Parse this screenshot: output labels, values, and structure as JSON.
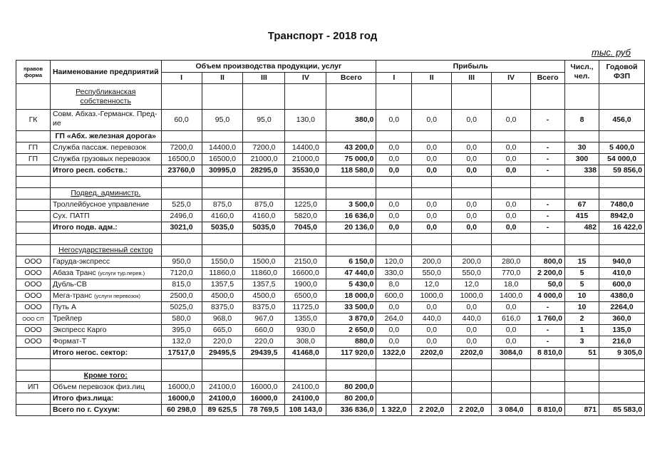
{
  "title": "Транспорт - 2018 год",
  "unit": "тыс. руб",
  "header": {
    "forma": "правов форма",
    "name": "Наименование предприятий",
    "volume": "Объем производства продукции, услуг",
    "profit": "Прибыль",
    "quarters": [
      "I",
      "II",
      "III",
      "IV",
      "Всего"
    ],
    "num": "Числ., чел.",
    "fzp": "Годовой ФЗП"
  },
  "rows": [
    {
      "type": "section",
      "forma": "",
      "name": "Республиканская собственность",
      "underline": true
    },
    {
      "type": "data",
      "forma": "ГК",
      "name": "Совм. Абхаз.-Германск. Пред-ие",
      "vol": [
        "60,0",
        "95,0",
        "95,0",
        "130,0",
        "380,0"
      ],
      "profit": [
        "0,0",
        "0,0",
        "0,0",
        "0,0",
        "-"
      ],
      "num": "8",
      "fzp": "456,0"
    },
    {
      "type": "section",
      "forma": "",
      "name": "ГП «Абх. железная дорога»",
      "bold": true
    },
    {
      "type": "data",
      "forma": "ГП",
      "name": "Служба пассаж. перевозок",
      "vol": [
        "7200,0",
        "14400,0",
        "7200,0",
        "14400,0",
        "43 200,0"
      ],
      "profit": [
        "0,0",
        "0,0",
        "0,0",
        "0,0",
        "-"
      ],
      "num": "30",
      "fzp": "5 400,0"
    },
    {
      "type": "data",
      "forma": "ГП",
      "name": "Служба грузовых перевозок",
      "vol": [
        "16500,0",
        "16500,0",
        "21000,0",
        "21000,0",
        "75 000,0"
      ],
      "profit": [
        "0,0",
        "0,0",
        "0,0",
        "0,0",
        "-"
      ],
      "num": "300",
      "fzp": "54 000,0"
    },
    {
      "type": "total",
      "forma": "",
      "name": "Итого респ. собств.:",
      "vol": [
        "23760,0",
        "30995,0",
        "28295,0",
        "35530,0",
        "118 580,0"
      ],
      "profit": [
        "0,0",
        "0,0",
        "0,0",
        "0,0",
        "-"
      ],
      "num": "338",
      "fzp": "59 856,0"
    },
    {
      "type": "empty"
    },
    {
      "type": "section",
      "forma": "",
      "name": "Подвед. администр.",
      "underline": true
    },
    {
      "type": "data",
      "forma": "",
      "name": "Троллейбусное управление",
      "vol": [
        "525,0",
        "875,0",
        "875,0",
        "1225,0",
        "3 500,0"
      ],
      "profit": [
        "0,0",
        "0,0",
        "0,0",
        "0,0",
        "-"
      ],
      "num": "67",
      "fzp": "7480,0"
    },
    {
      "type": "data",
      "forma": "",
      "name": "Сух. ПАТП",
      "vol": [
        "2496,0",
        "4160,0",
        "4160,0",
        "5820,0",
        "16 636,0"
      ],
      "profit": [
        "0,0",
        "0,0",
        "0,0",
        "0,0",
        "-"
      ],
      "num": "415",
      "fzp": "8942,0"
    },
    {
      "type": "total",
      "forma": "",
      "name": "Итого подв. адм.:",
      "vol": [
        "3021,0",
        "5035,0",
        "5035,0",
        "7045,0",
        "20 136,0"
      ],
      "profit": [
        "0,0",
        "0,0",
        "0,0",
        "0,0",
        "-"
      ],
      "num": "482",
      "fzp": "16 422,0"
    },
    {
      "type": "empty"
    },
    {
      "type": "section",
      "forma": "",
      "name": "Негосударственный сектор",
      "underline": true
    },
    {
      "type": "data",
      "forma": "ООО",
      "name": "Гаруда-экспресс",
      "vol": [
        "950,0",
        "1550,0",
        "1500,0",
        "2150,0",
        "6 150,0"
      ],
      "profit": [
        "120,0",
        "200,0",
        "200,0",
        "280,0",
        "800,0"
      ],
      "num": "15",
      "fzp": "940,0"
    },
    {
      "type": "data",
      "forma": "ООО",
      "name": "Абаза Транс",
      "note": "(услуги тур.перев.)",
      "vol": [
        "7120,0",
        "11860,0",
        "11860,0",
        "16600,0",
        "47 440,0"
      ],
      "profit": [
        "330,0",
        "550,0",
        "550,0",
        "770,0",
        "2 200,0"
      ],
      "num": "5",
      "fzp": "410,0"
    },
    {
      "type": "data",
      "forma": "ООО",
      "name": "Дубль-СВ",
      "vol": [
        "815,0",
        "1357,5",
        "1357,5",
        "1900,0",
        "5 430,0"
      ],
      "profit": [
        "8,0",
        "12,0",
        "12,0",
        "18,0",
        "50,0"
      ],
      "num": "5",
      "fzp": "600,0"
    },
    {
      "type": "data",
      "forma": "ООО",
      "name": "Мега-транс",
      "note": "(услуги перевозок)",
      "vol": [
        "2500,0",
        "4500,0",
        "4500,0",
        "6500,0",
        "18 000,0"
      ],
      "profit": [
        "600,0",
        "1000,0",
        "1000,0",
        "1400,0",
        "4 000,0"
      ],
      "num": "10",
      "fzp": "4380,0"
    },
    {
      "type": "data",
      "forma": "ООО",
      "name": "Путь А",
      "vol": [
        "5025,0",
        "8375,0",
        "8375,0",
        "11725,0",
        "33 500,0"
      ],
      "profit": [
        "0,0",
        "0,0",
        "0,0",
        "0,0",
        "-"
      ],
      "num": "10",
      "fzp": "2264,0"
    },
    {
      "type": "data",
      "forma": "ООО СП",
      "name": "Трейлер",
      "vol": [
        "580,0",
        "968,0",
        "967,0",
        "1355,0",
        "3 870,0"
      ],
      "profit": [
        "264,0",
        "440,0",
        "440,0",
        "616,0",
        "1 760,0"
      ],
      "num": "2",
      "fzp": "360,0"
    },
    {
      "type": "data",
      "forma": "ООО",
      "name": "Экспресс Карго",
      "vol": [
        "395,0",
        "665,0",
        "660,0",
        "930,0",
        "2 650,0"
      ],
      "profit": [
        "0,0",
        "0,0",
        "0,0",
        "0,0",
        "-"
      ],
      "num": "1",
      "fzp": "135,0"
    },
    {
      "type": "data",
      "forma": "ООО",
      "name": "Формат-Т",
      "vol": [
        "132,0",
        "220,0",
        "220,0",
        "308,0",
        "880,0"
      ],
      "profit": [
        "0,0",
        "0,0",
        "0,0",
        "0,0",
        "-"
      ],
      "num": "3",
      "fzp": "216,0"
    },
    {
      "type": "total",
      "forma": "",
      "name": "Итого негос. сектор:",
      "vol": [
        "17517,0",
        "29495,5",
        "29439,5",
        "41468,0",
        "117 920,0"
      ],
      "profit": [
        "1322,0",
        "2202,0",
        "2202,0",
        "3084,0",
        "8 810,0"
      ],
      "num": "51",
      "fzp": "9 305,0"
    },
    {
      "type": "empty"
    },
    {
      "type": "section",
      "forma": "",
      "name": "Кроме того:",
      "underline": true,
      "bold": true
    },
    {
      "type": "data",
      "forma": "ИП",
      "name": "Объем перевозок физ.лиц",
      "vol": [
        "16000,0",
        "24100,0",
        "16000,0",
        "24100,0",
        "80 200,0"
      ],
      "profit": [
        "",
        "",
        "",
        "",
        ""
      ],
      "num": "",
      "fzp": ""
    },
    {
      "type": "total",
      "forma": "",
      "name": "Итого физ.лица:",
      "vol": [
        "16000,0",
        "24100,0",
        "16000,0",
        "24100,0",
        "80 200,0"
      ],
      "profit": [
        "",
        "",
        "",
        "",
        ""
      ],
      "num": "",
      "fzp": ""
    },
    {
      "type": "total",
      "forma": "",
      "name": "Всего по г. Сухум:",
      "vol": [
        "60 298,0",
        "89 625,5",
        "78 769,5",
        "108 143,0",
        "336 836,0"
      ],
      "profit": [
        "1 322,0",
        "2 202,0",
        "2 202,0",
        "3 084,0",
        "8 810,0"
      ],
      "num": "871",
      "fzp": "85 583,0"
    }
  ]
}
